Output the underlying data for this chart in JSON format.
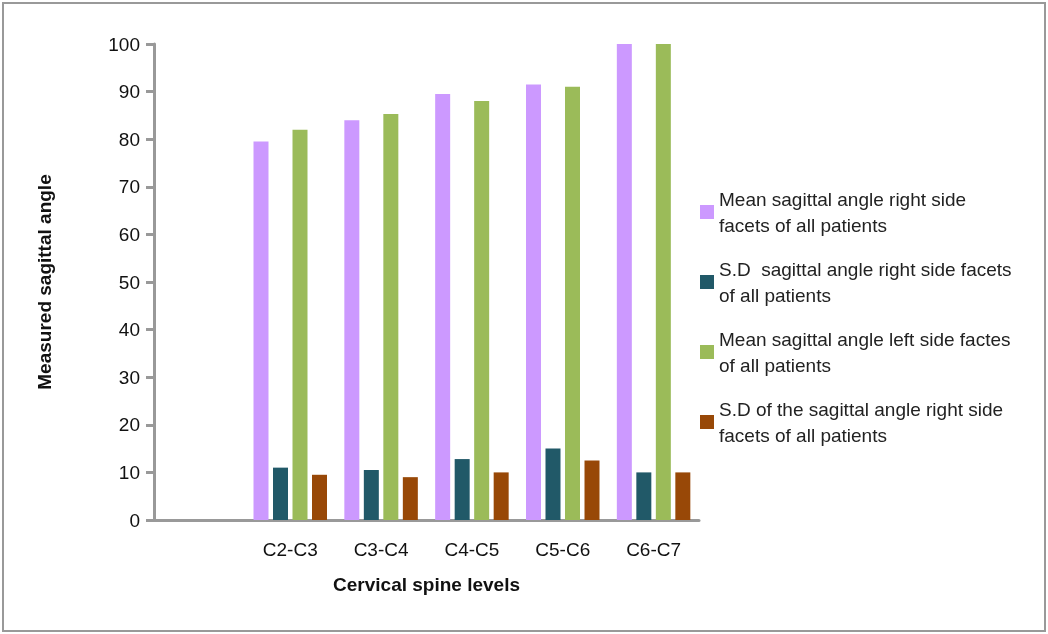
{
  "chart_data": {
    "type": "bar",
    "xlabel": "Cervical spine levels",
    "ylabel": "Measured sagittal angle",
    "categories": [
      null,
      "C2-C3",
      "C3-C4",
      "C4-C5",
      "C5-C6",
      "C6-C7"
    ],
    "series": [
      {
        "name": "Mean sagittal angle right side facets of all patients",
        "color": "#cc99ff",
        "values": [
          null,
          79.5,
          84,
          89.5,
          91.5,
          100
        ]
      },
      {
        "name": "S.D  sagittal angle right side facets of all patients",
        "color": "#215968",
        "values": [
          null,
          11,
          10.5,
          12.8,
          15,
          10
        ]
      },
      {
        "name": "Mean sagittal angle left side factes of all patients",
        "color": "#9bbb59",
        "values": [
          null,
          82,
          85.3,
          88,
          91,
          100
        ]
      },
      {
        "name": "S.D of the sagittal angle right side facets of all patients",
        "color": "#984807",
        "values": [
          null,
          9.5,
          9,
          10,
          12.5,
          10
        ]
      }
    ],
    "ylim": [
      0,
      100
    ],
    "yticks": [
      0,
      10,
      20,
      30,
      40,
      50,
      60,
      70,
      80,
      90,
      100
    ],
    "grid": false,
    "legend": "right"
  }
}
